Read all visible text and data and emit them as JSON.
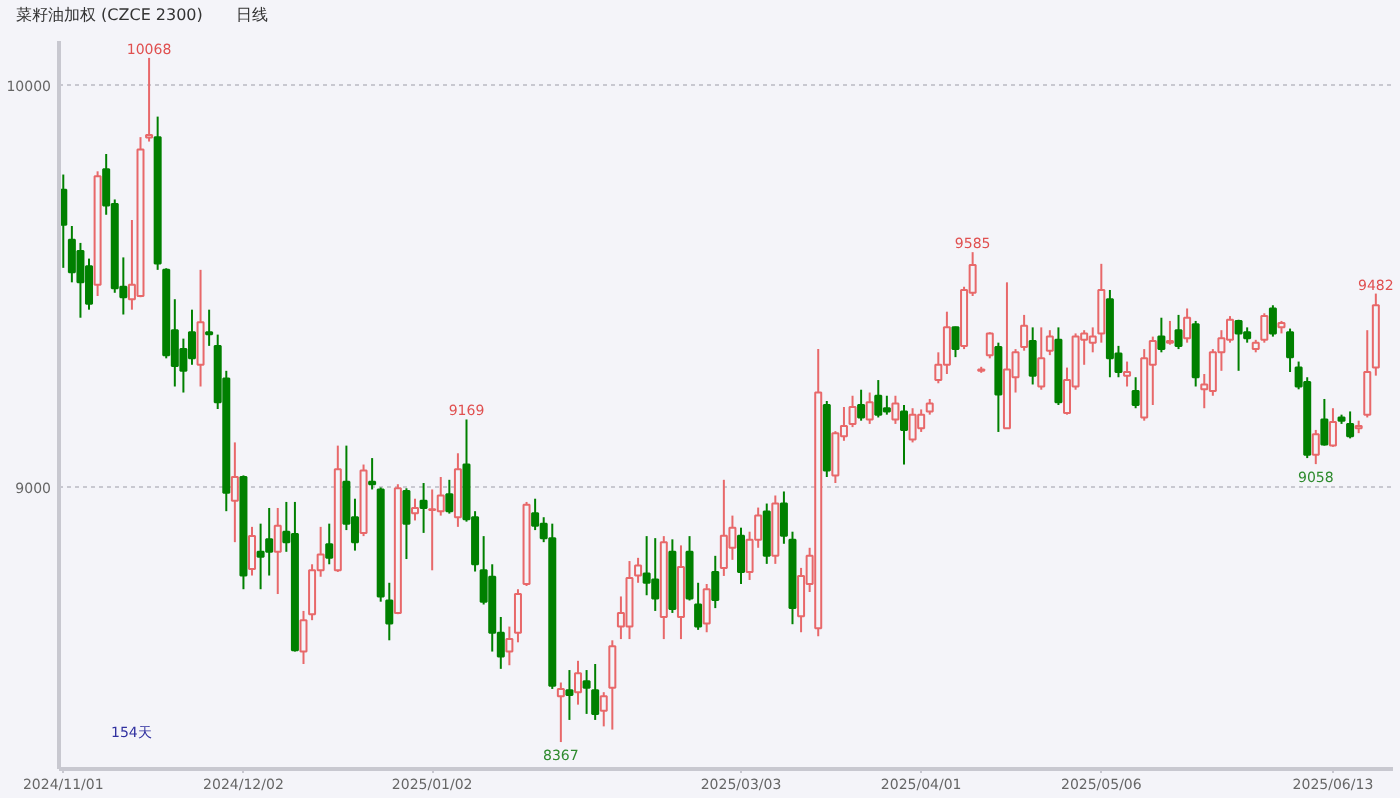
{
  "chart_data": {
    "type": "candlestick",
    "title": "菜籽油加权 (CZCE 2300)",
    "subtitle": "日线",
    "categories": [
      "2024/11/01",
      null,
      null,
      null,
      null,
      null,
      null,
      null,
      null,
      null,
      null,
      null,
      null,
      null,
      null,
      null,
      null,
      null,
      null,
      null,
      null,
      "2024/12/02",
      null,
      null,
      null,
      null,
      null,
      null,
      null,
      null,
      null,
      null,
      null,
      null,
      null,
      null,
      null,
      null,
      null,
      null,
      null,
      null,
      null,
      "2025/01/02",
      null,
      null,
      null,
      null,
      null,
      null,
      null,
      null,
      null,
      null,
      null,
      null,
      null,
      null,
      null,
      null,
      null,
      null,
      null,
      null,
      null,
      null,
      null,
      null,
      null,
      null,
      null,
      null,
      null,
      null,
      null,
      null,
      null,
      null,
      null,
      "2025/03/03",
      null,
      null,
      null,
      null,
      null,
      null,
      null,
      null,
      null,
      null,
      null,
      null,
      null,
      null,
      null,
      null,
      null,
      null,
      null,
      null,
      "2025/04/01",
      null,
      null,
      null,
      null,
      null,
      null,
      null,
      null,
      null,
      null,
      null,
      null,
      null,
      null,
      null,
      null,
      null,
      null,
      null,
      null,
      "2025/05/06",
      null,
      null,
      null,
      null,
      null,
      null,
      null,
      null,
      null,
      null,
      null,
      null,
      null,
      null,
      null,
      null,
      null,
      null,
      null,
      null,
      null,
      null,
      null,
      null,
      null,
      null,
      "2025/06/13",
      null,
      null,
      null,
      null,
      null
    ],
    "ohlc": [
      [
        9740,
        9778,
        9546,
        9653
      ],
      [
        9616,
        9650,
        9510,
        9535
      ],
      [
        9588,
        9608,
        9422,
        9510
      ],
      [
        9550,
        9569,
        9442,
        9457
      ],
      [
        9504,
        9786,
        9476,
        9774
      ],
      [
        9791,
        9829,
        9678,
        9701
      ],
      [
        9705,
        9716,
        9484,
        9495
      ],
      [
        9499,
        9572,
        9430,
        9473
      ],
      [
        9468,
        9665,
        9442,
        9504
      ],
      [
        9476,
        9871,
        9473,
        9840
      ],
      [
        9870,
        10068,
        9860,
        9876
      ],
      [
        9871,
        9922,
        9541,
        9557
      ],
      [
        9541,
        9545,
        9321,
        9329
      ],
      [
        9391,
        9468,
        9251,
        9302
      ],
      [
        9344,
        9370,
        9236,
        9290
      ],
      [
        9386,
        9442,
        9305,
        9321
      ],
      [
        9305,
        9541,
        9251,
        9411
      ],
      [
        9386,
        9442,
        9352,
        9381
      ],
      [
        9352,
        9380,
        9195,
        9212
      ],
      [
        9271,
        9290,
        8941,
        8987
      ],
      [
        8967,
        9112,
        8864,
        9026
      ],
      [
        9026,
        9030,
        8747,
        8781
      ],
      [
        8797,
        8902,
        8781,
        8879
      ],
      [
        8840,
        8910,
        8747,
        8828
      ],
      [
        8871,
        8949,
        8781,
        8840
      ],
      [
        8840,
        8949,
        8735,
        8905
      ],
      [
        8890,
        8964,
        8840,
        8864
      ],
      [
        8884,
        8964,
        8592,
        8595
      ],
      [
        8592,
        8693,
        8561,
        8670
      ],
      [
        8685,
        8809,
        8670,
        8794
      ],
      [
        8794,
        8902,
        8778,
        8833
      ],
      [
        8859,
        8910,
        8809,
        8825
      ],
      [
        8794,
        9104,
        8790,
        9045
      ],
      [
        9014,
        9104,
        8894,
        8910
      ],
      [
        8926,
        8972,
        8843,
        8864
      ],
      [
        8887,
        9057,
        8879,
        9042
      ],
      [
        9014,
        9073,
        8995,
        9008
      ],
      [
        8995,
        9000,
        8716,
        8729
      ],
      [
        8719,
        8763,
        8620,
        8662
      ],
      [
        8688,
        9008,
        8685,
        8998
      ],
      [
        8991,
        8998,
        8822,
        8910
      ],
      [
        8936,
        8972,
        8918,
        8949
      ],
      [
        8967,
        9011,
        8887,
        8949
      ],
      [
        8944,
        8995,
        8794,
        8946
      ],
      [
        8941,
        9026,
        8930,
        8980
      ],
      [
        8983,
        9019,
        8935,
        8941
      ],
      [
        8926,
        9085,
        8902,
        9045
      ],
      [
        9057,
        9169,
        8915,
        8921
      ],
      [
        8926,
        8941,
        8791,
        8809
      ],
      [
        8794,
        8879,
        8709,
        8716
      ],
      [
        8778,
        8809,
        8592,
        8639
      ],
      [
        8639,
        8678,
        8549,
        8580
      ],
      [
        8592,
        8654,
        8558,
        8623
      ],
      [
        8639,
        8747,
        8615,
        8735
      ],
      [
        8760,
        8964,
        8755,
        8957
      ],
      [
        8936,
        8972,
        8894,
        8905
      ],
      [
        8910,
        8926,
        8864,
        8874
      ],
      [
        8874,
        8910,
        8499,
        8507
      ],
      [
        8481,
        8515,
        8367,
        8499
      ],
      [
        8496,
        8546,
        8422,
        8484
      ],
      [
        8491,
        8569,
        8460,
        8538
      ],
      [
        8518,
        8546,
        8437,
        8502
      ],
      [
        8496,
        8561,
        8422,
        8437
      ],
      [
        8445,
        8491,
        8406,
        8481
      ],
      [
        8502,
        8620,
        8398,
        8605
      ],
      [
        8654,
        8729,
        8623,
        8688
      ],
      [
        8654,
        8817,
        8623,
        8775
      ],
      [
        8781,
        8825,
        8763,
        8806
      ],
      [
        8786,
        8879,
        8732,
        8763
      ],
      [
        8771,
        8874,
        8693,
        8724
      ],
      [
        8678,
        8879,
        8623,
        8864
      ],
      [
        8840,
        8871,
        8688,
        8698
      ],
      [
        8678,
        8856,
        8623,
        8802
      ],
      [
        8840,
        8879,
        8719,
        8724
      ],
      [
        8709,
        8763,
        8646,
        8654
      ],
      [
        8662,
        8760,
        8640,
        8747
      ],
      [
        8790,
        8830,
        8700,
        8720
      ],
      [
        8800,
        9019,
        8780,
        8880
      ],
      [
        8850,
        8930,
        8820,
        8900
      ],
      [
        8880,
        8900,
        8760,
        8790
      ],
      [
        8790,
        8890,
        8770,
        8870
      ],
      [
        8870,
        8950,
        8850,
        8930
      ],
      [
        8940,
        8960,
        8810,
        8830
      ],
      [
        8830,
        8980,
        8810,
        8960
      ],
      [
        8960,
        8990,
        8860,
        8880
      ],
      [
        8870,
        8890,
        8660,
        8700
      ],
      [
        8680,
        8800,
        8640,
        8780
      ],
      [
        8760,
        8850,
        8740,
        8830
      ],
      [
        8650,
        9344,
        8630,
        9236
      ],
      [
        9205,
        9215,
        9026,
        9042
      ],
      [
        9030,
        9140,
        9011,
        9135
      ],
      [
        9127,
        9200,
        9116,
        9153
      ],
      [
        9158,
        9228,
        9150,
        9200
      ],
      [
        9205,
        9243,
        9166,
        9174
      ],
      [
        9169,
        9236,
        9158,
        9212
      ],
      [
        9228,
        9267,
        9174,
        9181
      ],
      [
        9197,
        9228,
        9181,
        9189
      ],
      [
        9169,
        9228,
        9158,
        9209
      ],
      [
        9189,
        9205,
        9057,
        9143
      ],
      [
        9119,
        9197,
        9112,
        9181
      ],
      [
        9147,
        9194,
        9138,
        9181
      ],
      [
        9189,
        9220,
        9181,
        9209
      ],
      [
        9267,
        9336,
        9259,
        9305
      ],
      [
        9305,
        9437,
        9282,
        9398
      ],
      [
        9398,
        9400,
        9324,
        9344
      ],
      [
        9352,
        9499,
        9344,
        9491
      ],
      [
        9484,
        9585,
        9476,
        9553
      ],
      [
        9290,
        9300,
        9285,
        9293
      ],
      [
        9329,
        9386,
        9321,
        9383
      ],
      [
        9349,
        9360,
        9138,
        9231
      ],
      [
        9147,
        9510,
        9147,
        9293
      ],
      [
        9274,
        9344,
        9236,
        9336
      ],
      [
        9349,
        9429,
        9340,
        9402
      ],
      [
        9364,
        9398,
        9256,
        9278
      ],
      [
        9251,
        9398,
        9243,
        9321
      ],
      [
        9340,
        9391,
        9329,
        9375
      ],
      [
        9367,
        9398,
        9205,
        9212
      ],
      [
        9185,
        9298,
        9181,
        9267
      ],
      [
        9251,
        9383,
        9243,
        9375
      ],
      [
        9367,
        9391,
        9305,
        9383
      ],
      [
        9360,
        9398,
        9336,
        9375
      ],
      [
        9383,
        9556,
        9360,
        9491
      ],
      [
        9468,
        9491,
        9274,
        9321
      ],
      [
        9333,
        9352,
        9274,
        9287
      ],
      [
        9278,
        9313,
        9251,
        9287
      ],
      [
        9240,
        9274,
        9197,
        9205
      ],
      [
        9174,
        9344,
        9166,
        9321
      ],
      [
        9305,
        9375,
        9205,
        9364
      ],
      [
        9375,
        9422,
        9336,
        9344
      ],
      [
        9360,
        9414,
        9355,
        9364
      ],
      [
        9391,
        9429,
        9344,
        9352
      ],
      [
        9371,
        9445,
        9360,
        9422
      ],
      [
        9406,
        9414,
        9251,
        9274
      ],
      [
        9244,
        9282,
        9197,
        9256
      ],
      [
        9240,
        9344,
        9228,
        9336
      ],
      [
        9336,
        9391,
        9290,
        9371
      ],
      [
        9367,
        9426,
        9360,
        9417
      ],
      [
        9414,
        9417,
        9290,
        9383
      ],
      [
        9386,
        9398,
        9360,
        9371
      ],
      [
        9344,
        9367,
        9336,
        9360
      ],
      [
        9367,
        9433,
        9360,
        9426
      ],
      [
        9445,
        9453,
        9375,
        9383
      ],
      [
        9398,
        9414,
        9383,
        9409
      ],
      [
        9386,
        9395,
        9287,
        9324
      ],
      [
        9298,
        9313,
        9244,
        9251
      ],
      [
        9262,
        9274,
        9073,
        9081
      ],
      [
        9081,
        9143,
        9058,
        9132
      ],
      [
        9169,
        9220,
        9104,
        9107
      ],
      [
        9104,
        9197,
        9101,
        9163
      ],
      [
        9174,
        9181,
        9158,
        9166
      ],
      [
        9158,
        9189,
        9122,
        9127
      ],
      [
        9147,
        9166,
        9135,
        9153
      ],
      [
        9181,
        9391,
        9174,
        9287
      ],
      [
        9298,
        9482,
        9278,
        9453
      ]
    ],
    "colors": [
      "#008000",
      "#008000",
      "#008000",
      "#008000",
      "#e8686a",
      "#008000",
      "#008000",
      "#008000",
      "#e8686a",
      "#e8686a",
      "#e8686a",
      "#008000",
      "#008000",
      "#008000",
      "#008000",
      "#008000",
      "#e8686a",
      "#008000",
      "#008000",
      "#008000",
      "#e8686a",
      "#008000",
      "#e8686a",
      "#008000",
      "#008000",
      "#e8686a",
      "#008000",
      "#008000",
      "#e8686a",
      "#e8686a",
      "#e8686a",
      "#008000",
      "#e8686a",
      "#008000",
      "#008000",
      "#e8686a",
      "#008000",
      "#008000",
      "#008000",
      "#e8686a",
      "#008000",
      "#e8686a",
      "#008000",
      "#e8686a",
      "#e8686a",
      "#008000",
      "#e8686a",
      "#008000",
      "#008000",
      "#008000",
      "#008000",
      "#008000",
      "#e8686a",
      "#e8686a",
      "#e8686a",
      "#008000",
      "#008000",
      "#008000",
      "#e8686a",
      "#008000",
      "#e8686a",
      "#008000",
      "#008000",
      "#e8686a",
      "#e8686a",
      "#e8686a",
      "#e8686a",
      "#e8686a",
      "#008000",
      "#008000",
      "#e8686a",
      "#008000",
      "#e8686a",
      "#008000",
      "#008000",
      "#e8686a",
      "#008000",
      "#e8686a",
      "#e8686a",
      "#008000",
      "#e8686a",
      "#e8686a",
      "#008000",
      "#e8686a",
      "#008000",
      "#008000",
      "#e8686a",
      "#e8686a",
      "#e8686a",
      "#008000",
      "#e8686a",
      "#e8686a",
      "#e8686a",
      "#008000",
      "#e8686a",
      "#008000",
      "#008000",
      "#e8686a",
      "#008000",
      "#e8686a",
      "#e8686a",
      "#e8686a",
      "#e8686a",
      "#e8686a",
      "#008000",
      "#e8686a",
      "#e8686a",
      "#e8686a",
      "#e8686a",
      "#008000",
      "#e8686a",
      "#e8686a",
      "#e8686a",
      "#008000",
      "#e8686a",
      "#e8686a",
      "#008000",
      "#e8686a",
      "#e8686a",
      "#e8686a",
      "#e8686a",
      "#e8686a",
      "#008000",
      "#008000",
      "#e8686a",
      "#008000",
      "#e8686a",
      "#e8686a",
      "#008000",
      "#e8686a",
      "#008000",
      "#e8686a",
      "#008000",
      "#e8686a",
      "#e8686a",
      "#e8686a",
      "#e8686a",
      "#008000",
      "#008000",
      "#e8686a",
      "#e8686a",
      "#008000",
      "#e8686a",
      "#008000",
      "#008000",
      "#008000",
      "#e8686a",
      "#008000",
      "#e8686a",
      "#008000",
      "#008000",
      "#e8686a",
      "#e8686a",
      "#e8686a"
    ],
    "ylim": [
      8300,
      10110
    ],
    "yticks": [
      10000,
      9000
    ],
    "grid": "y",
    "annotations": [
      {
        "text": "10068",
        "y": 10068
      },
      {
        "text": "9169",
        "y": 9169
      },
      {
        "text": "8367",
        "y": 8367
      },
      {
        "text": "9585",
        "y": 9585
      },
      {
        "text": "9058",
        "y": 9058
      },
      {
        "text": "9482",
        "y": 9482
      },
      "154天"
    ]
  }
}
